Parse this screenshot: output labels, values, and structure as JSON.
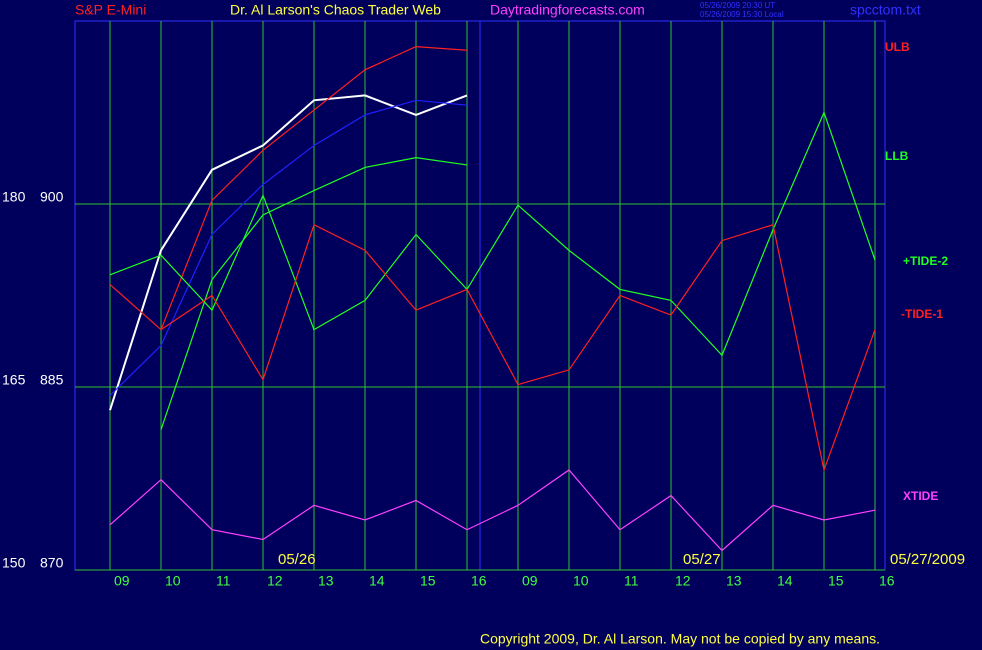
{
  "chart_data": {
    "type": "line",
    "title": "Dr. Al Larson's Chaos Trader Web",
    "subtitle": "S&P E-Mini",
    "site": "Daytradingforecasts.com",
    "timestamps": [
      "05/26/2009 20:30 UT",
      "05/26/2009 15:30 Local"
    ],
    "file": "spcctom.txt",
    "annotations": [
      "05/26",
      "05/27",
      "05/27/2009"
    ],
    "copyright": "Copyright 2009, Dr. Al Larson. May not be copied by any means.",
    "categories": [
      "09",
      "10",
      "11",
      "12",
      "13",
      "14",
      "15",
      "16",
      "09",
      "10",
      "11",
      "12",
      "13",
      "14",
      "15",
      "16"
    ],
    "ylim": [
      870,
      915
    ],
    "yticks": [
      870,
      885,
      900
    ],
    "y2lim": [
      150,
      195
    ],
    "y2ticks": [
      150,
      165,
      180
    ],
    "grid": true,
    "series": [
      {
        "color": "#ffffff",
        "values": [
          883.1,
          896.2,
          902.8,
          904.8,
          908.5,
          908.9,
          907.3,
          908.9,
          null,
          null,
          null,
          null,
          null,
          null,
          null,
          null
        ]
      },
      {
        "color": "#2020ff",
        "values": [
          884.3,
          888.4,
          897.5,
          901.6,
          904.8,
          907.3,
          908.5,
          908.1,
          null,
          null,
          null,
          null,
          null,
          null,
          null,
          null
        ]
      },
      {
        "name": "ULB",
        "color": "#ff2020",
        "values": [
          null,
          889.7,
          900.3,
          904.4,
          907.7,
          911,
          912.9,
          912.6,
          null,
          null,
          null,
          null,
          null,
          null,
          null,
          null
        ]
      },
      {
        "name": "LLB",
        "color": "#20ff20",
        "values": [
          null,
          881.5,
          893.8,
          899.1,
          901.1,
          903,
          903.8,
          903.2,
          null,
          null,
          null,
          null,
          null,
          null,
          null,
          null
        ]
      },
      {
        "name": "+TIDE-2",
        "color": "#20ff20",
        "axis": "y2",
        "values": [
          174.2,
          175.8,
          171.3,
          180.7,
          169.7,
          172.1,
          177.5,
          173,
          179.9,
          176.2,
          173,
          172.1,
          167.6,
          177.9,
          187.5,
          175.4
        ]
      },
      {
        "name": "-TIDE-1",
        "color": "#ff2020",
        "axis": "y2",
        "values": [
          173.4,
          169.7,
          172.5,
          165.6,
          178.3,
          176.2,
          171.3,
          173,
          165.2,
          166.4,
          172.5,
          170.9,
          177,
          178.3,
          158.2,
          169.7
        ]
      },
      {
        "name": "XTIDE",
        "color": "#ff40ff",
        "axis": "y2",
        "values": [
          153.7,
          157.4,
          153.3,
          152.5,
          155.3,
          154.1,
          155.7,
          153.3,
          155.3,
          158.2,
          153.3,
          156.1,
          151.6,
          155.3,
          154.1,
          154.9
        ]
      }
    ]
  }
}
